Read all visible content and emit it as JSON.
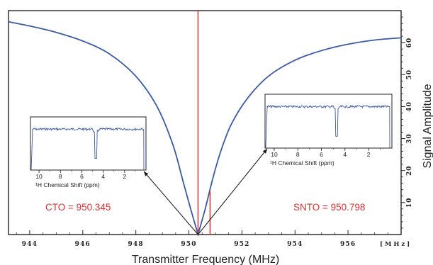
{
  "chart_data": {
    "type": "line",
    "xlabel": "Transmitter Frequency (MHz)",
    "ylabel": "Signal Amplitude",
    "x_unit_label": "[ M H z ]",
    "xlim": [
      943.2,
      958.0
    ],
    "ylim": [
      0,
      70
    ],
    "x_ticks": [
      944,
      946,
      948,
      950,
      952,
      954,
      956
    ],
    "y_ticks": [
      10,
      20,
      30,
      40,
      50,
      60
    ],
    "x_tick_labels": [
      "944",
      "946",
      "948",
      "950",
      "952",
      "954",
      "956"
    ],
    "y_tick_labels": [
      "10",
      "20",
      "30",
      "40",
      "50",
      "60"
    ],
    "series": [
      {
        "color": "#3a5aa8",
        "x": [
          943.2,
          944,
          945,
          946,
          947,
          948,
          948.8,
          949.4,
          949.8,
          950.1,
          950.345,
          950.6,
          950.9,
          951.2,
          951.6,
          952.2,
          953,
          954,
          955,
          956,
          957,
          958
        ],
        "y": [
          66.5,
          65.2,
          63.2,
          60.5,
          56.5,
          49.5,
          40.0,
          28.0,
          16.0,
          7.0,
          0.0,
          7.5,
          17.5,
          26.0,
          34.5,
          42.5,
          49.5,
          54.5,
          57.5,
          59.5,
          60.8,
          61.5
        ]
      }
    ],
    "markers": [
      {
        "x": 950.345,
        "y_from": 0,
        "y_to": 70,
        "color": "#e03030"
      },
      {
        "x": 950.798,
        "y_from": 0,
        "y_to": 13.5,
        "color": "#e03030"
      }
    ],
    "annotations": {
      "cto": "CTO = 950.345",
      "snto": "SNTO = 950.798"
    },
    "insets": [
      {
        "xlabel": "¹H Chemical Shift (ppm)",
        "tick_labels": [
          "10",
          "8",
          "6",
          "4",
          "2"
        ],
        "dip_ppm": 4.7
      },
      {
        "xlabel": "¹H Chemical Shift (ppm)",
        "tick_labels": [
          "10",
          "8",
          "6",
          "4",
          "2"
        ],
        "dip_ppm": 4.7
      }
    ]
  }
}
